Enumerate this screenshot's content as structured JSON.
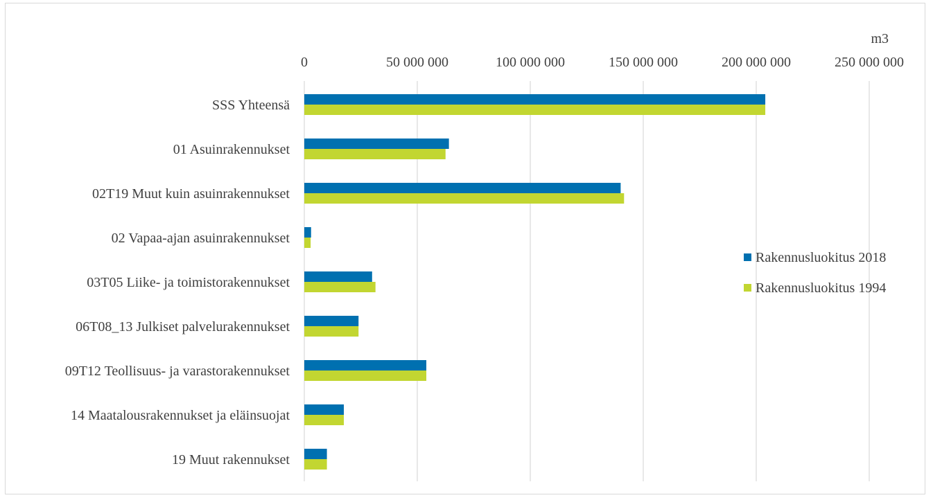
{
  "chart_data": {
    "type": "bar",
    "orientation": "horizontal",
    "unit_label": "m3",
    "categories": [
      "SSS Yhteensä",
      "01 Asuinrakennukset",
      "02T19 Muut kuin asuinrakennukset",
      "02 Vapaa-ajan asuinrakennukset",
      "03T05 Liike- ja toimistorakennukset",
      "06T08_13 Julkiset palvelurakennukset",
      "09T12 Teollisuus- ja varastorakennukset",
      "14 Maatalousrakennukset ja eläinsuojat",
      "19 Muut rakennukset"
    ],
    "series": [
      {
        "name": "Rakennusluokitus 2018",
        "color": "#0070b0",
        "values": [
          204000000,
          64000000,
          140000000,
          3000000,
          30000000,
          24000000,
          54000000,
          17500000,
          10000000
        ]
      },
      {
        "name": "Rakennusluokitus 1994",
        "color": "#c2d631",
        "values": [
          204000000,
          62500000,
          141500000,
          2800000,
          31500000,
          24000000,
          54000000,
          17500000,
          10000000
        ]
      }
    ],
    "xlim": [
      0,
      250000000
    ],
    "ticks": [
      0,
      50000000,
      100000000,
      150000000,
      200000000,
      250000000
    ],
    "tick_labels": [
      "0",
      "50 000 000",
      "100 000 000",
      "150 000 000",
      "200 000 000",
      "250 000 000"
    ],
    "axis_position": "top",
    "legend_position": "right",
    "grid": true,
    "grid_color": "#d9d9d9"
  }
}
